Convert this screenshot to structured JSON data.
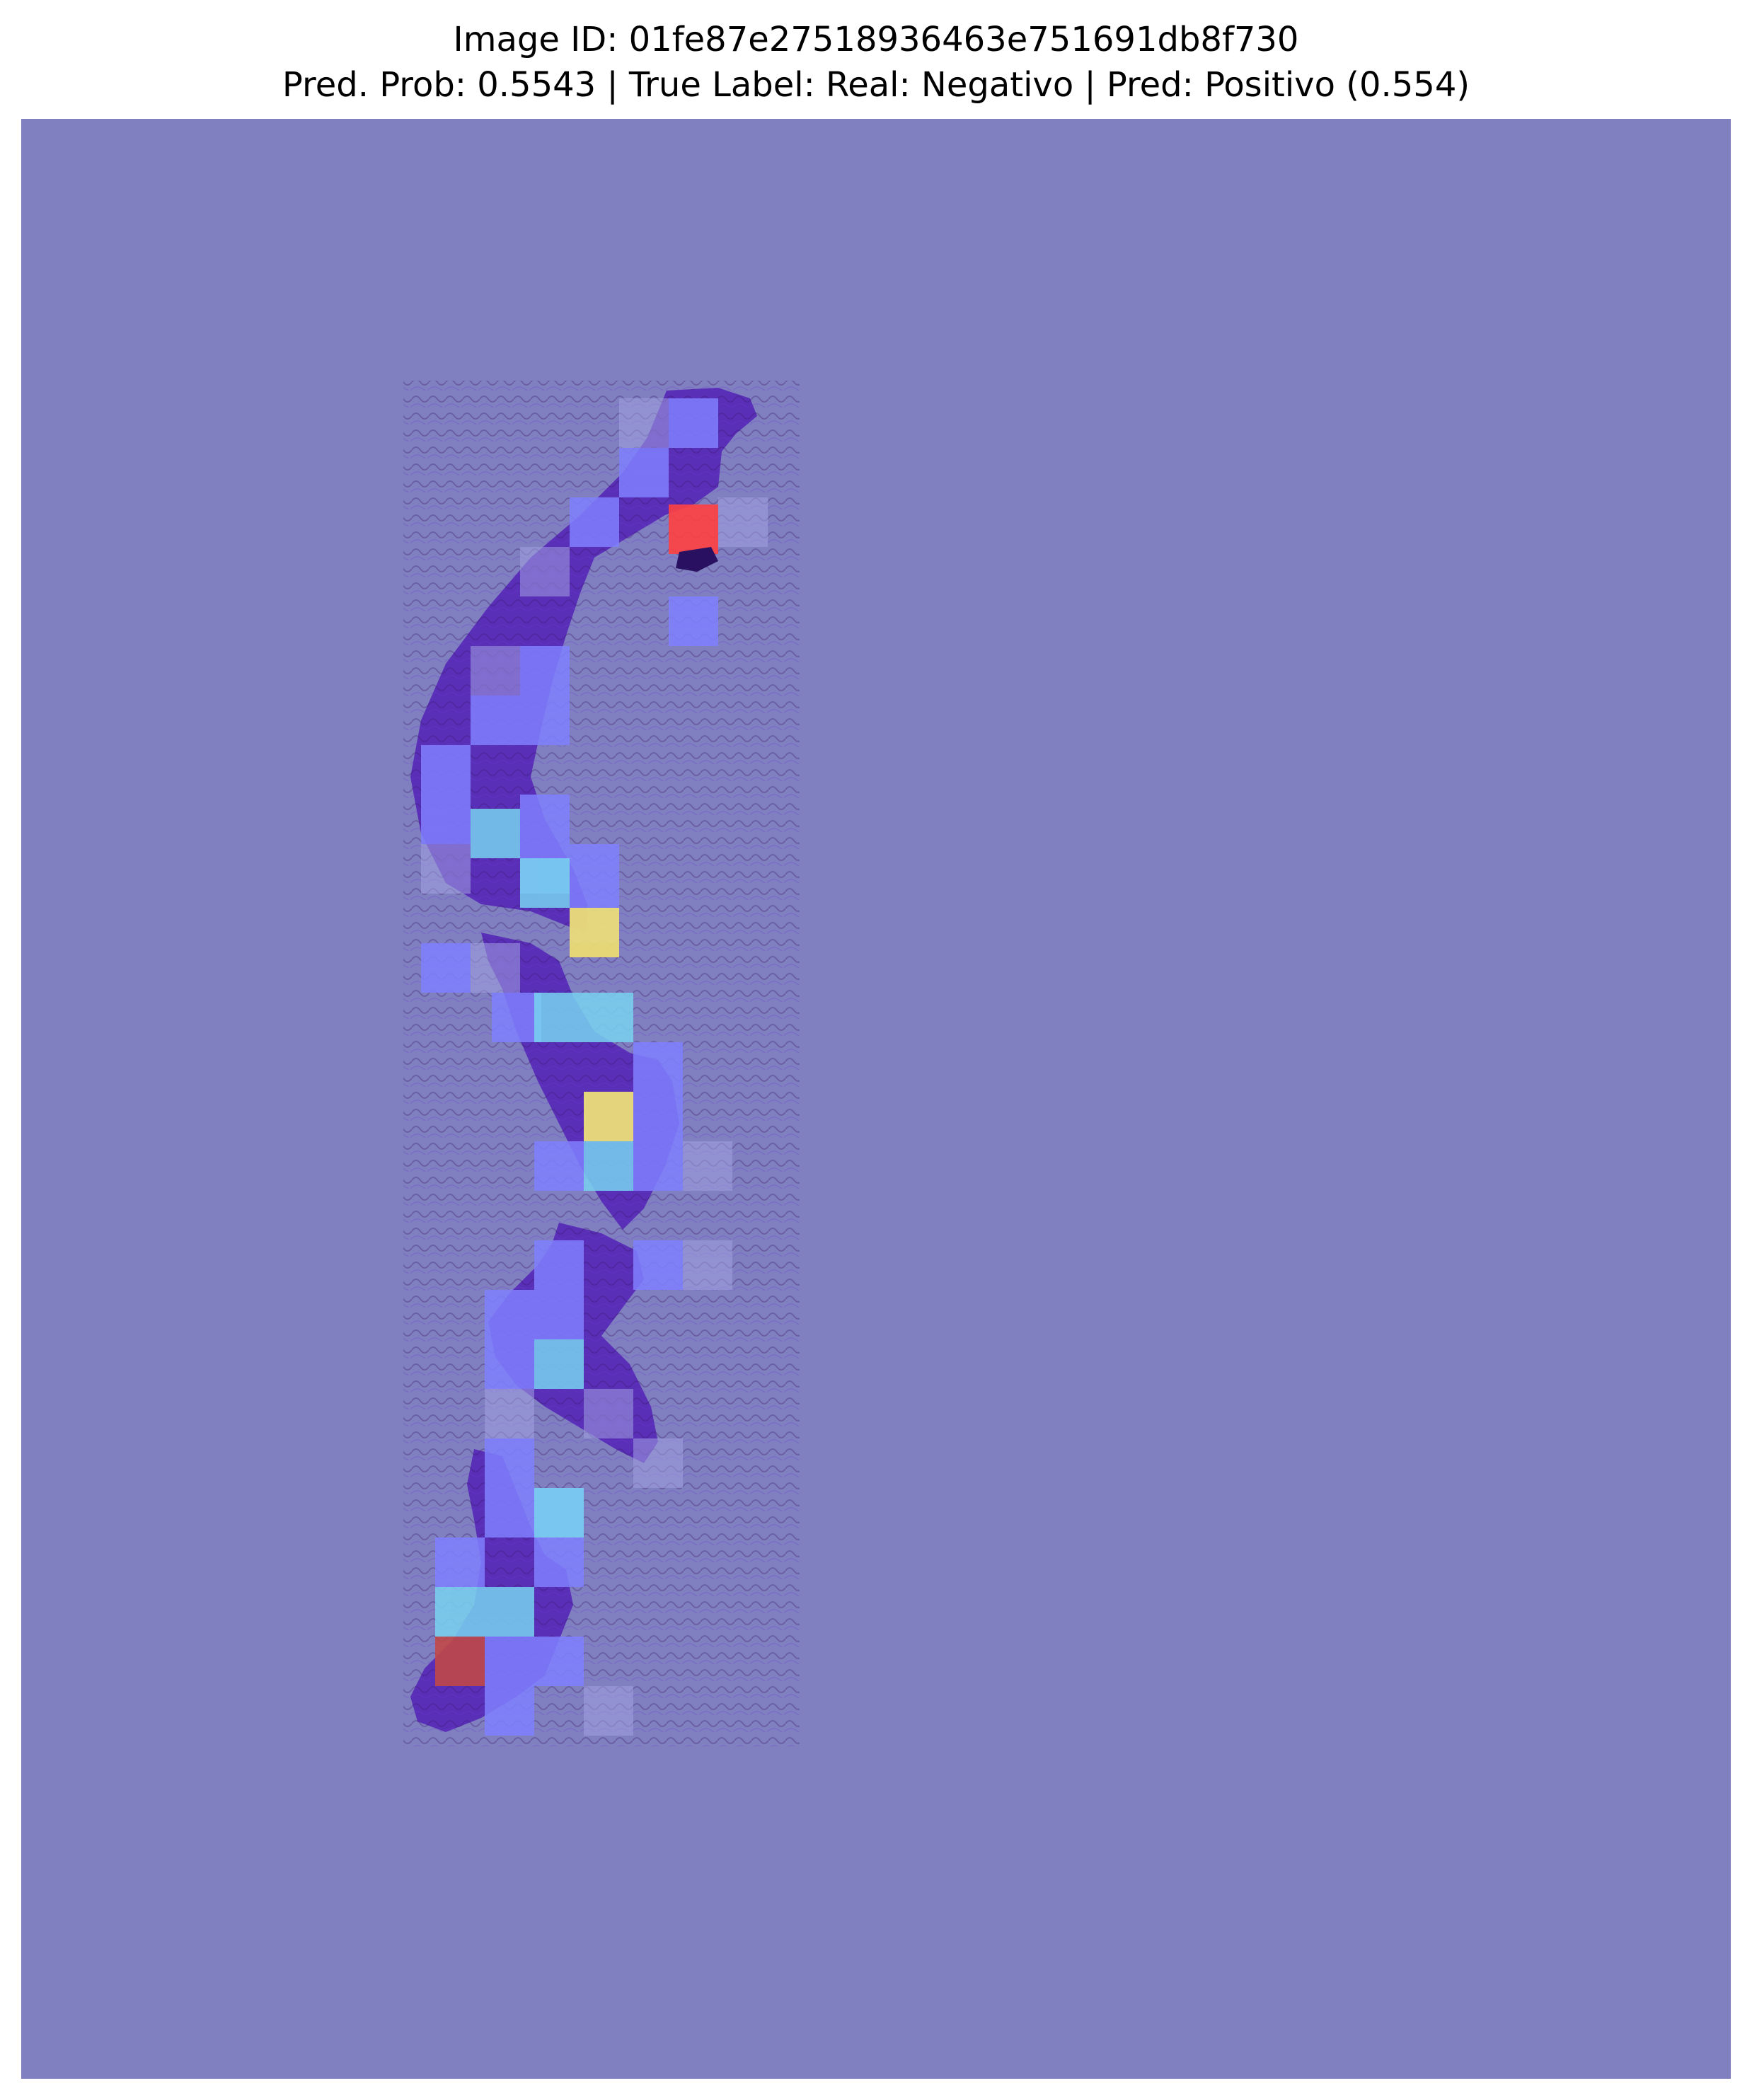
{
  "figure": {
    "title_line1": "Image ID: 01fe87e27518936463e751691db8f730",
    "title_line2": "Pred. Prob: 0.5543 | True Label: Real: Negativo | Pred: Positivo (0.554)"
  },
  "colors": {
    "background_overlay": "#8080c0",
    "tissue": "#5a2fb8",
    "tissue_dark": "#4a1f8e",
    "low_attention": "#8080ff",
    "mid_attention": "#78d2f0",
    "high_attention": "#f0e070",
    "max_attention": "#ff4040"
  }
}
